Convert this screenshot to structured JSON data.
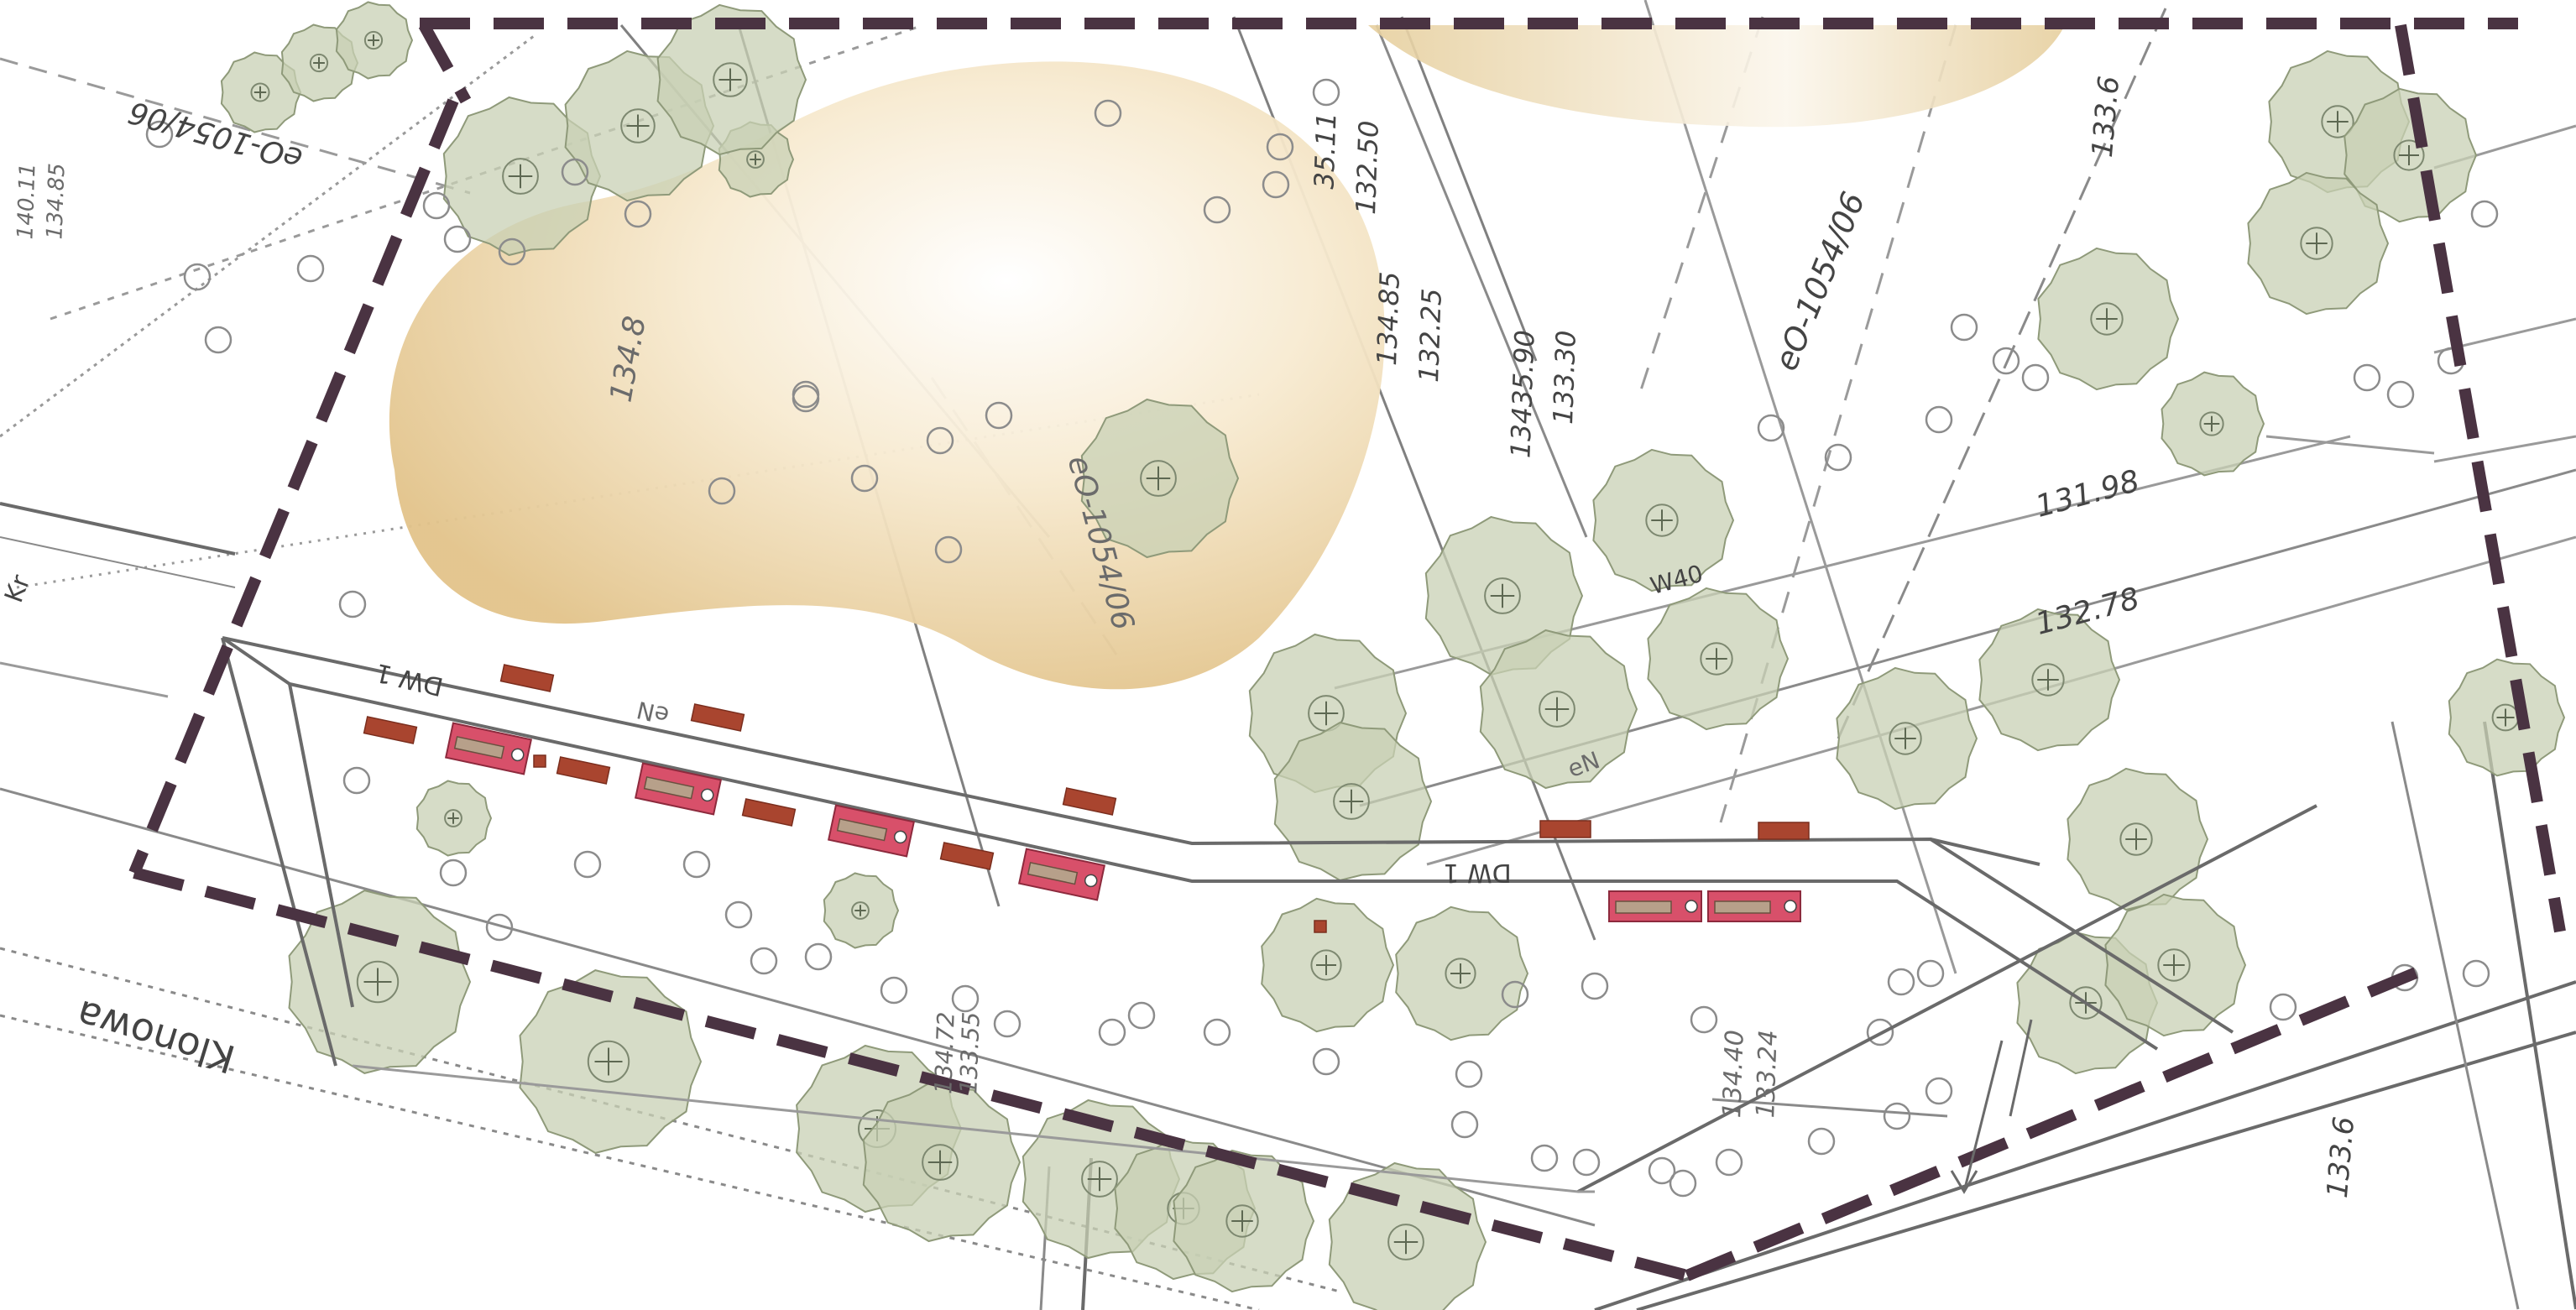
{
  "colors": {
    "paper": "#ffffff",
    "boundary": "#4a3342",
    "tree_fill": "#c8d0b4",
    "tree_stroke": "#8f9a7a",
    "sand": "#e8cf95",
    "path": "#6f6f6f",
    "bench": "#d8506a",
    "brick": "#a9452f",
    "survey_line": "#9a9a9a"
  },
  "street": {
    "name": "Klonowa"
  },
  "labels": {
    "parcel_top_left": "eO-1054/06",
    "parcel_center": "eO-1054/06",
    "parcel_right": "eO-1054/06",
    "elev_sand": "134.8",
    "elev_top_right": "133.6",
    "elev_bottom_right": "133.6",
    "elev_line_1": "131.98",
    "elev_line_2": "132.78",
    "elev_pair_1a": "35.11",
    "elev_pair_1b": "132.50",
    "elev_pair_2a": "134.85",
    "elev_pair_2b": "132.25",
    "elev_pair_3a": "13435.90",
    "elev_pair_3b": "133.30",
    "elev_pair_4a": "134.40",
    "elev_pair_4b": "133.24",
    "elev_pair_5a": "134.72",
    "elev_pair_5b": "133.55",
    "elev_left_a": "140.11",
    "elev_left_b": "134.85",
    "path_1": "DW 1",
    "path_2": "DW 1",
    "water_1": "W40",
    "en_1": "eN",
    "en_2": "eN",
    "kr": "Kr"
  }
}
